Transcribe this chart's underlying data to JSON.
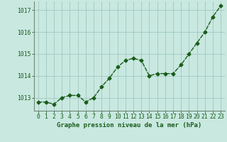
{
  "x": [
    0,
    1,
    2,
    3,
    4,
    5,
    6,
    7,
    8,
    9,
    10,
    11,
    12,
    13,
    14,
    15,
    16,
    17,
    18,
    19,
    20,
    21,
    22,
    23
  ],
  "y": [
    1012.8,
    1012.8,
    1012.7,
    1013.0,
    1013.1,
    1013.1,
    1012.8,
    1013.0,
    1013.5,
    1013.9,
    1014.4,
    1014.7,
    1014.8,
    1014.7,
    1014.0,
    1014.1,
    1014.1,
    1014.1,
    1014.5,
    1015.0,
    1015.5,
    1016.0,
    1016.7,
    1017.2
  ],
  "line_color": "#1a5c1a",
  "marker": "D",
  "marker_size": 2.5,
  "bg_color": "#c8e8e0",
  "grid_color": "#a0c8c0",
  "xlabel": "Graphe pression niveau de la mer (hPa)",
  "xlabel_color": "#1a5c1a",
  "tick_color": "#1a5c1a",
  "ylim": [
    1012.4,
    1017.4
  ],
  "yticks": [
    1013,
    1014,
    1015,
    1016,
    1017
  ],
  "xticks": [
    0,
    1,
    2,
    3,
    4,
    5,
    6,
    7,
    8,
    9,
    10,
    11,
    12,
    13,
    14,
    15,
    16,
    17,
    18,
    19,
    20,
    21,
    22,
    23
  ],
  "spine_color": "#708878",
  "tick_fontsize": 5.8,
  "xlabel_fontsize": 6.5,
  "line_width": 1.0
}
